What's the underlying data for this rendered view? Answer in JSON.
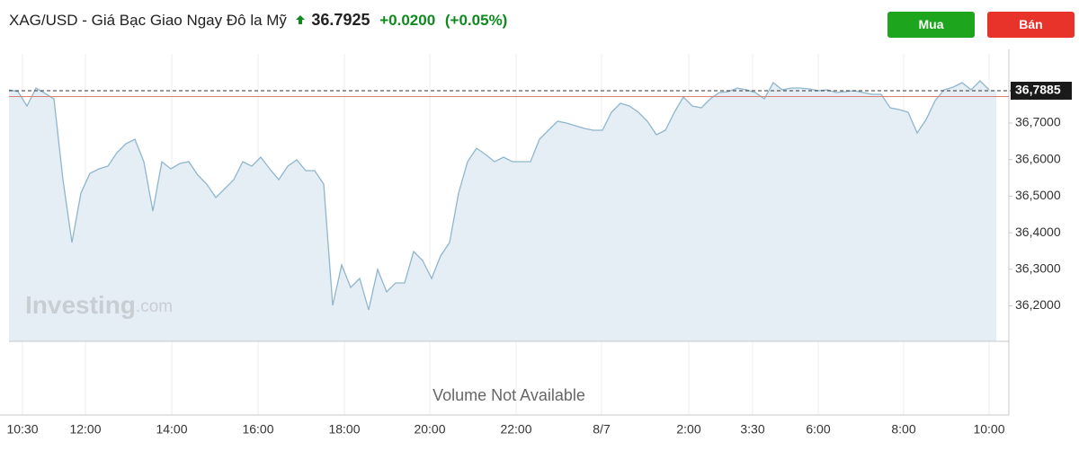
{
  "chart_data": {
    "type": "area",
    "title": "XAG/USD - Giá Bạc Giao Ngay Đô la Mỹ",
    "price": "36.7925",
    "change": "+0.0200",
    "change_pct": "(+0.05%)",
    "buy_button": "Mua",
    "sell_button": "Bán",
    "watermark": "Investing",
    "watermark_suffix": ".com",
    "volume_note": "Volume Not Available",
    "color": "#8fb6cc",
    "fill_color": "#e6eef5",
    "reference_line": 36.7725,
    "reference_color": "#d9827a",
    "last_price_label": {
      "value": 36.7885,
      "label": "36,7885"
    },
    "values": [
      36.7909,
      36.786,
      36.7467,
      36.7958,
      36.7811,
      36.7663,
      36.5452,
      36.3732,
      36.5084,
      36.5624,
      36.5747,
      36.5821,
      36.6189,
      36.6435,
      36.6558,
      36.5943,
      36.4592,
      36.5943,
      36.5747,
      36.5894,
      36.5943,
      36.5575,
      36.5329,
      36.4961,
      36.5206,
      36.5452,
      36.5943,
      36.5821,
      36.6066,
      36.5747,
      36.5452,
      36.5821,
      36.5993,
      36.5698,
      36.5698,
      36.5329,
      36.2012,
      36.3118,
      36.2504,
      36.2749,
      36.1889,
      36.2995,
      36.2381,
      36.2627,
      36.2627,
      36.3486,
      36.3241,
      36.2749,
      36.3364,
      36.3732,
      36.5084,
      36.5943,
      36.6312,
      36.614,
      36.5943,
      36.6066,
      36.5943,
      36.5943,
      36.5943,
      36.6558,
      36.6803,
      36.7049,
      36.7,
      36.6926,
      36.6853,
      36.6803,
      36.6803,
      36.7295,
      36.7541,
      36.7467,
      36.7295,
      36.7049,
      36.6681,
      36.6803,
      36.7295,
      36.7713,
      36.7467,
      36.7418,
      36.7663,
      36.7835,
      36.786,
      36.7958,
      36.7909,
      36.7835,
      36.7663,
      36.8106,
      36.7909,
      36.7958,
      36.7958,
      36.7934,
      36.7885,
      36.7909,
      36.7835,
      36.786,
      36.7885,
      36.7835,
      36.7786,
      36.7786,
      36.7418,
      36.7369,
      36.7295,
      36.673,
      36.7098,
      36.7614,
      36.7909,
      36.7983,
      36.8106,
      36.7909,
      36.8155,
      36.7909
    ],
    "xlim": [
      0,
      109
    ],
    "xticks": [
      {
        "value": 1.5,
        "label": "10:30"
      },
      {
        "value": 8.5,
        "label": "12:00"
      },
      {
        "value": 18.1,
        "label": "14:00"
      },
      {
        "value": 27.7,
        "label": "16:00"
      },
      {
        "value": 37.3,
        "label": "18:00"
      },
      {
        "value": 46.8,
        "label": "20:00"
      },
      {
        "value": 56.4,
        "label": "22:00"
      },
      {
        "value": 65.9,
        "label": "8/7"
      },
      {
        "value": 75.6,
        "label": "2:00"
      },
      {
        "value": 82.7,
        "label": "3:30"
      },
      {
        "value": 90,
        "label": "6:00"
      },
      {
        "value": 99.5,
        "label": "8:00"
      },
      {
        "value": 109,
        "label": "10:00"
      }
    ],
    "ylim": [
      36.1029,
      36.8892
    ],
    "yticks": [
      {
        "value": 36.2,
        "label": "36,2000"
      },
      {
        "value": 36.3,
        "label": "36,3000"
      },
      {
        "value": 36.4,
        "label": "36,4000"
      },
      {
        "value": 36.5,
        "label": "36,5000"
      },
      {
        "value": 36.6,
        "label": "36,6000"
      },
      {
        "value": 36.7,
        "label": "36,7000"
      }
    ],
    "grid": true
  }
}
